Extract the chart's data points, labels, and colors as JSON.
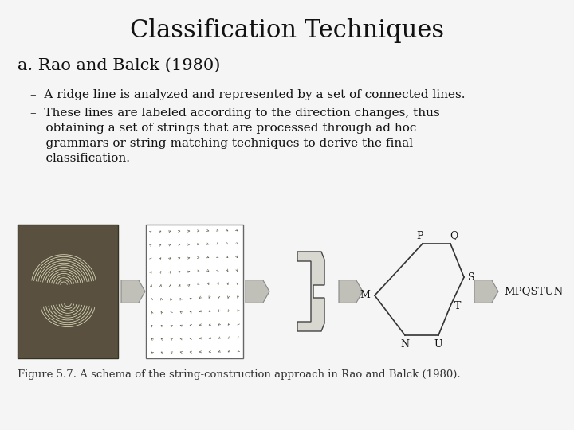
{
  "title": "Classification Techniques",
  "subtitle": "a. Rao and Balck (1980)",
  "bullet1": "–  A ridge line is analyzed and represented by a set of connected lines.",
  "bullet2": "–  These lines are labeled according to the direction changes, thus\n    obtaining a set of strings that are processed through ad hoc\n    grammars or string-matching techniques to derive the final\n    classification.",
  "figure_caption": "Figure 5.7. A schema of the string-construction approach in Rao and Balck (1980).",
  "bg_color": "#f5f5f5",
  "title_fontsize": 22,
  "subtitle_fontsize": 15,
  "body_fontsize": 11,
  "caption_fontsize": 9.5,
  "text_color": "#111111",
  "title_font": "DejaVu Serif",
  "body_font": "DejaVu Serif",
  "fp_color": "#888880",
  "fp_line_color": "#ccccbb",
  "vf_box_color": "#ffffff",
  "arrow_fill": "#c0c0b8",
  "arrow_edge": "#888888",
  "shape_fill": "#d8d8d0",
  "shape_edge": "#444444",
  "graph_line": "#333333"
}
